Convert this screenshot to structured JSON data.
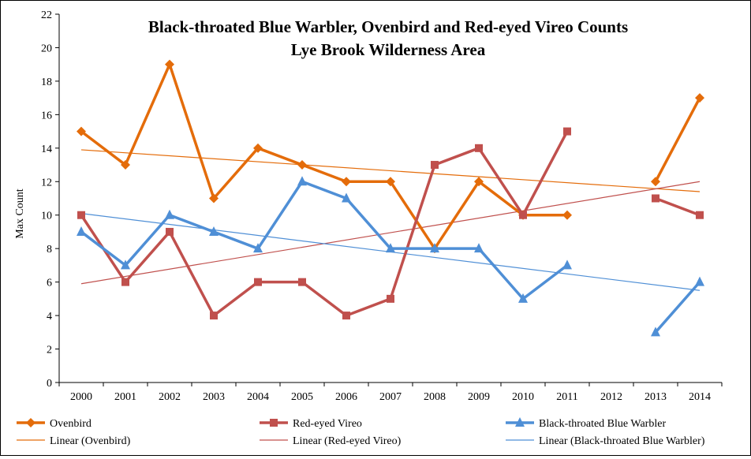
{
  "chart_data": {
    "type": "line",
    "title": "Black-throated Blue Warbler, Ovenbird and Red-eyed Vireo Counts",
    "subtitle": "Lye Brook Wilderness Area",
    "xlabel": "",
    "ylabel": "Max Count",
    "ylim": [
      0,
      22
    ],
    "yticks": [
      "0",
      "2",
      "4",
      "6",
      "8",
      "10",
      "12",
      "14",
      "16",
      "18",
      "20",
      "22"
    ],
    "categories": [
      "2000",
      "2001",
      "2002",
      "2003",
      "2004",
      "2005",
      "2006",
      "2007",
      "2008",
      "2009",
      "2010",
      "2011",
      "2012",
      "2013",
      "2014"
    ],
    "grid": false,
    "legend_position": "bottom",
    "series": [
      {
        "name": "Ovenbird",
        "color": "#E46C0A",
        "marker": "diamond",
        "values": [
          15,
          13,
          19,
          11,
          14,
          13,
          12,
          12,
          8,
          12,
          10,
          10,
          null,
          12,
          17
        ]
      },
      {
        "name": "Red-eyed Vireo",
        "color": "#C0504D",
        "marker": "square",
        "values": [
          10,
          6,
          9,
          4,
          6,
          6,
          4,
          5,
          13,
          14,
          10,
          15,
          null,
          11,
          10
        ]
      },
      {
        "name": "Black-throated Blue Warbler",
        "color": "#4F8FD6",
        "marker": "triangle",
        "values": [
          9,
          7,
          10,
          9,
          8,
          12,
          11,
          8,
          8,
          8,
          5,
          7,
          null,
          3,
          6
        ]
      }
    ],
    "trendlines": [
      {
        "name": "Linear (Ovenbird)",
        "color": "#E46C0A",
        "start": 13.9,
        "end": 11.4
      },
      {
        "name": "Linear (Red-eyed Vireo)",
        "color": "#C0504D",
        "start": 5.9,
        "end": 12.0
      },
      {
        "name": "Linear (Black-throated Blue Warbler)",
        "color": "#4F8FD6",
        "start": 10.1,
        "end": 5.5
      }
    ]
  }
}
